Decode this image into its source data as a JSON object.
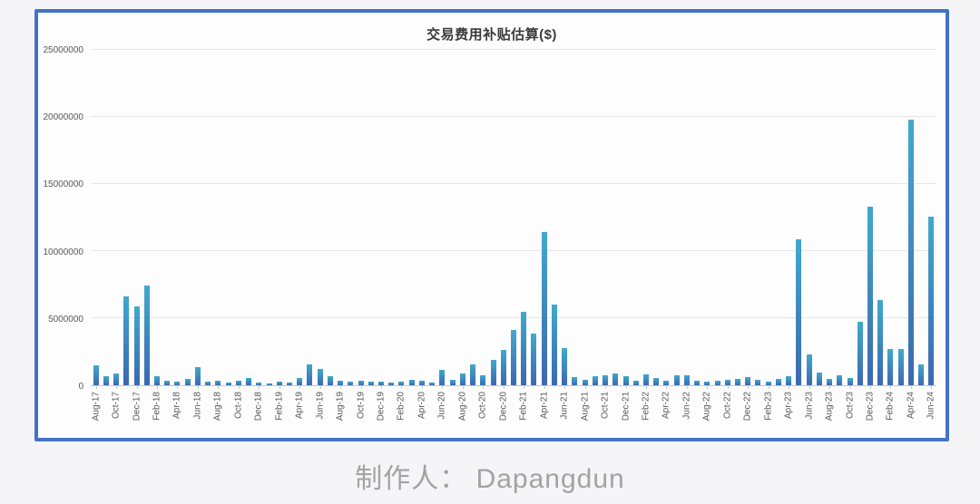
{
  "page": {
    "footer_text": "制作人： Dapangdun",
    "background_color": "#f5f5f7"
  },
  "chart": {
    "title": "交易费用补贴估算($)",
    "style": {
      "frame_border_color": "#4472c4",
      "chart_background": "#fdfdfe",
      "bar_gradient_top": "#41a9cb",
      "bar_gradient_bottom": "#3c68b0",
      "grid_color": "#e6e6ea",
      "axis_line_color": "#c8c8cd",
      "tick_label_color": "#595959",
      "title_color": "#3b3b3b",
      "footer_color": "#a2a2a8"
    }
  },
  "chart_data": {
    "type": "bar",
    "title": "交易费用补贴估算($)",
    "xlabel": "",
    "ylabel": "",
    "ylim": [
      0,
      25000000
    ],
    "y_tick_values": [
      0,
      5000000,
      10000000,
      15000000,
      20000000,
      25000000
    ],
    "y_tick_labels": [
      "0",
      "5000000",
      "10000000",
      "15000000",
      "20000000",
      "25000000"
    ],
    "x_tick_interval": 2,
    "x_tick_labels": [
      "Aug-17",
      "Oct-17",
      "Dec-17",
      "Feb-18",
      "Apr-18",
      "Jun-18",
      "Aug-18",
      "Oct-18",
      "Dec-18",
      "Feb-19",
      "Apr-19",
      "Jun-19",
      "Aug-19",
      "Oct-19",
      "Dec-19",
      "Feb-20",
      "Apr-20",
      "Jun-20",
      "Aug-20",
      "Oct-20",
      "Dec-20",
      "Feb-21",
      "Apr-21",
      "Jun-21",
      "Aug-21",
      "Oct-21",
      "Dec-21",
      "Feb-22",
      "Apr-22",
      "Jun-22",
      "Aug-22",
      "Oct-22",
      "Dec-22",
      "Feb-23",
      "Apr-23",
      "Jun-23",
      "Aug-23",
      "Oct-23",
      "Dec-23",
      "Feb-24",
      "Apr-24",
      "Jun-24"
    ],
    "grid": true,
    "legend": false,
    "categories": [
      "Aug-17",
      "Sep-17",
      "Oct-17",
      "Nov-17",
      "Dec-17",
      "Jan-18",
      "Feb-18",
      "Mar-18",
      "Apr-18",
      "May-18",
      "Jun-18",
      "Jul-18",
      "Aug-18",
      "Sep-18",
      "Oct-18",
      "Nov-18",
      "Dec-18",
      "Jan-19",
      "Feb-19",
      "Mar-19",
      "Apr-19",
      "May-19",
      "Jun-19",
      "Jul-19",
      "Aug-19",
      "Sep-19",
      "Oct-19",
      "Nov-19",
      "Dec-19",
      "Jan-20",
      "Feb-20",
      "Mar-20",
      "Apr-20",
      "May-20",
      "Jun-20",
      "Jul-20",
      "Aug-20",
      "Sep-20",
      "Oct-20",
      "Nov-20",
      "Dec-20",
      "Jan-21",
      "Feb-21",
      "Mar-21",
      "Apr-21",
      "May-21",
      "Jun-21",
      "Jul-21",
      "Aug-21",
      "Sep-21",
      "Oct-21",
      "Nov-21",
      "Dec-21",
      "Jan-22",
      "Feb-22",
      "Mar-22",
      "Apr-22",
      "May-22",
      "Jun-22",
      "Jul-22",
      "Aug-22",
      "Sep-22",
      "Oct-22",
      "Nov-22",
      "Dec-22",
      "Jan-23",
      "Feb-23",
      "Mar-23",
      "Apr-23",
      "May-23",
      "Jun-23",
      "Jul-23",
      "Aug-23",
      "Sep-23",
      "Oct-23",
      "Nov-23",
      "Dec-23",
      "Jan-24",
      "Feb-24",
      "Mar-24",
      "Apr-24",
      "May-24",
      "Jun-24"
    ],
    "values": [
      1500000,
      650000,
      850000,
      6600000,
      5900000,
      7400000,
      700000,
      350000,
      250000,
      450000,
      1350000,
      280000,
      350000,
      200000,
      350000,
      550000,
      220000,
      150000,
      250000,
      180000,
      550000,
      1550000,
      1250000,
      700000,
      360000,
      270000,
      320000,
      270000,
      290000,
      220000,
      270000,
      420000,
      350000,
      180000,
      1150000,
      420000,
      900000,
      1550000,
      750000,
      1900000,
      2650000,
      4100000,
      5500000,
      3850000,
      11400000,
      6000000,
      2750000,
      580000,
      440000,
      650000,
      770000,
      880000,
      650000,
      310000,
      830000,
      540000,
      310000,
      720000,
      770000,
      330000,
      270000,
      340000,
      410000,
      470000,
      610000,
      410000,
      270000,
      470000,
      680000,
      10900000,
      2300000,
      950000,
      500000,
      750000,
      520000,
      4750000,
      13300000,
      6350000,
      2680000,
      2680000,
      19800000,
      1560000,
      12600000
    ]
  }
}
